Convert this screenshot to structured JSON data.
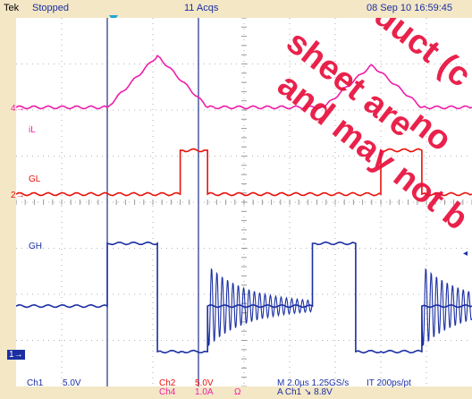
{
  "header": {
    "brand": "Tek",
    "state": "Stopped",
    "acqs": "11 Acqs",
    "datetime": "08 Sep 10 16:59:45"
  },
  "labels": {
    "il": "iL",
    "gl": "GL",
    "gh": "GH"
  },
  "markers": {
    "ch4": "4",
    "ch2": "2",
    "ch1": "1"
  },
  "footer": {
    "ch1": "Ch1",
    "ch1_scale": "5.0V",
    "ch2": "Ch2",
    "ch2_scale": "5.0V",
    "ch4": "Ch4",
    "ch4_scale": "1.0A",
    "ch4_unit_symbol": "Ω",
    "timebase": "M 2.0µs 1.25GS/s",
    "interp": "IT 200ps/pt",
    "trigger": "A Ch1 ↘ 8.8V"
  },
  "watermark": {
    "line1": "sheet are",
    "line2": "and may not b",
    "line3": "duct (c",
    "line4": "no"
  },
  "colors": {
    "background": "#f3e7c6",
    "screen": "#ffffff",
    "grid": "#9a9a9a",
    "ch1": "#1b2fa3",
    "ch2": "#e8120c",
    "ch4": "#ee1ea8",
    "cursor": "#1f2d8a",
    "watermark": "#e8123f",
    "trigger_marker": "#1aa6d8"
  },
  "chart_data": {
    "type": "line",
    "xunit": "µs",
    "xrange": [
      -10,
      10
    ],
    "divisions": {
      "x": 10,
      "y": 8
    },
    "cursors_us": [
      -6.0,
      -2.0
    ],
    "series": [
      {
        "name": "iL",
        "channel": "Ch4",
        "unit": "A",
        "baseline": 0,
        "x": [
          -10.0,
          -6.0,
          -3.8,
          -1.6,
          3.5,
          5.6,
          7.8,
          10.0
        ],
        "y": [
          0.0,
          0.0,
          1.7,
          0.0,
          0.0,
          1.4,
          0.0,
          0.0
        ]
      },
      {
        "name": "GL",
        "channel": "Ch2",
        "unit": "V",
        "baseline": 0,
        "x": [
          -10.0,
          -2.8,
          -2.8,
          -1.6,
          -1.6,
          6.0,
          6.0,
          7.8,
          7.8,
          10.0
        ],
        "y": [
          0.0,
          0.0,
          5.0,
          5.0,
          0.0,
          0.0,
          5.0,
          5.0,
          0.0,
          0.0
        ]
      },
      {
        "name": "GH",
        "channel": "Ch1",
        "unit": "V",
        "baseline": 0,
        "x": [
          -10.0,
          -6.0,
          -6.0,
          -3.8,
          -3.8,
          -2.8,
          -2.8,
          -1.6,
          -1.6,
          3.0,
          3.0,
          4.9,
          4.9,
          6.0,
          6.0,
          7.8,
          7.8,
          10.0
        ],
        "y": [
          5.3,
          5.3,
          12.6,
          12.6,
          0.0,
          0.0,
          0.0,
          0.0,
          5.3,
          5.3,
          12.6,
          12.6,
          0.0,
          0.0,
          0.0,
          0.0,
          5.3,
          5.3
        ]
      }
    ]
  }
}
